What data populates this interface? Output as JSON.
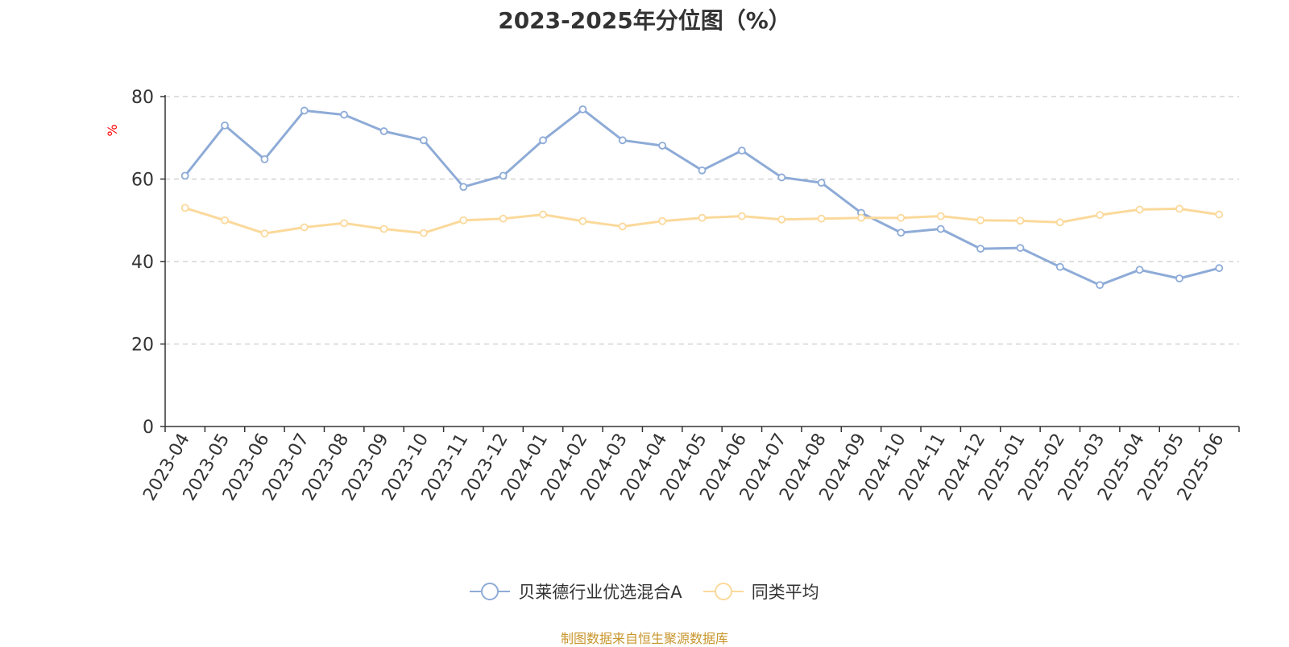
{
  "chart_data": {
    "type": "line",
    "title": "2023-2025年分位图（%）",
    "ylabel": "%",
    "xlabel": "",
    "ylim": [
      0,
      80
    ],
    "yticks": [
      0,
      20,
      40,
      60,
      80
    ],
    "grid": true,
    "legend_position": "bottom",
    "categories": [
      "2023-04",
      "2023-05",
      "2023-06",
      "2023-07",
      "2023-08",
      "2023-09",
      "2023-10",
      "2023-11",
      "2023-12",
      "2024-01",
      "2024-02",
      "2024-03",
      "2024-04",
      "2024-05",
      "2024-06",
      "2024-07",
      "2024-08",
      "2024-09",
      "2024-10",
      "2024-11",
      "2024-12",
      "2025-01",
      "2025-02",
      "2025-03",
      "2025-04",
      "2025-05",
      "2025-06"
    ],
    "series": [
      {
        "name": "贝莱德行业优选混合A",
        "color": "#8eabd7",
        "values": [
          60.8,
          73.0,
          64.8,
          76.6,
          75.6,
          71.6,
          69.4,
          58.1,
          60.8,
          69.4,
          76.9,
          69.4,
          68.1,
          62.1,
          66.9,
          60.4,
          59.1,
          51.8,
          47.0,
          47.9,
          43.1,
          43.3,
          38.7,
          34.3,
          38.0,
          35.9,
          38.4
        ]
      },
      {
        "name": "同类平均",
        "color": "#fbd99b",
        "values": [
          53.0,
          50.0,
          46.8,
          48.3,
          49.3,
          47.9,
          46.9,
          50.0,
          50.4,
          51.4,
          49.8,
          48.5,
          49.8,
          50.6,
          51.0,
          50.2,
          50.4,
          50.6,
          50.6,
          51.0,
          50.0,
          49.9,
          49.5,
          51.3,
          52.6,
          52.8,
          51.4
        ]
      }
    ]
  },
  "source_note": "制图数据来自恒生聚源数据库"
}
